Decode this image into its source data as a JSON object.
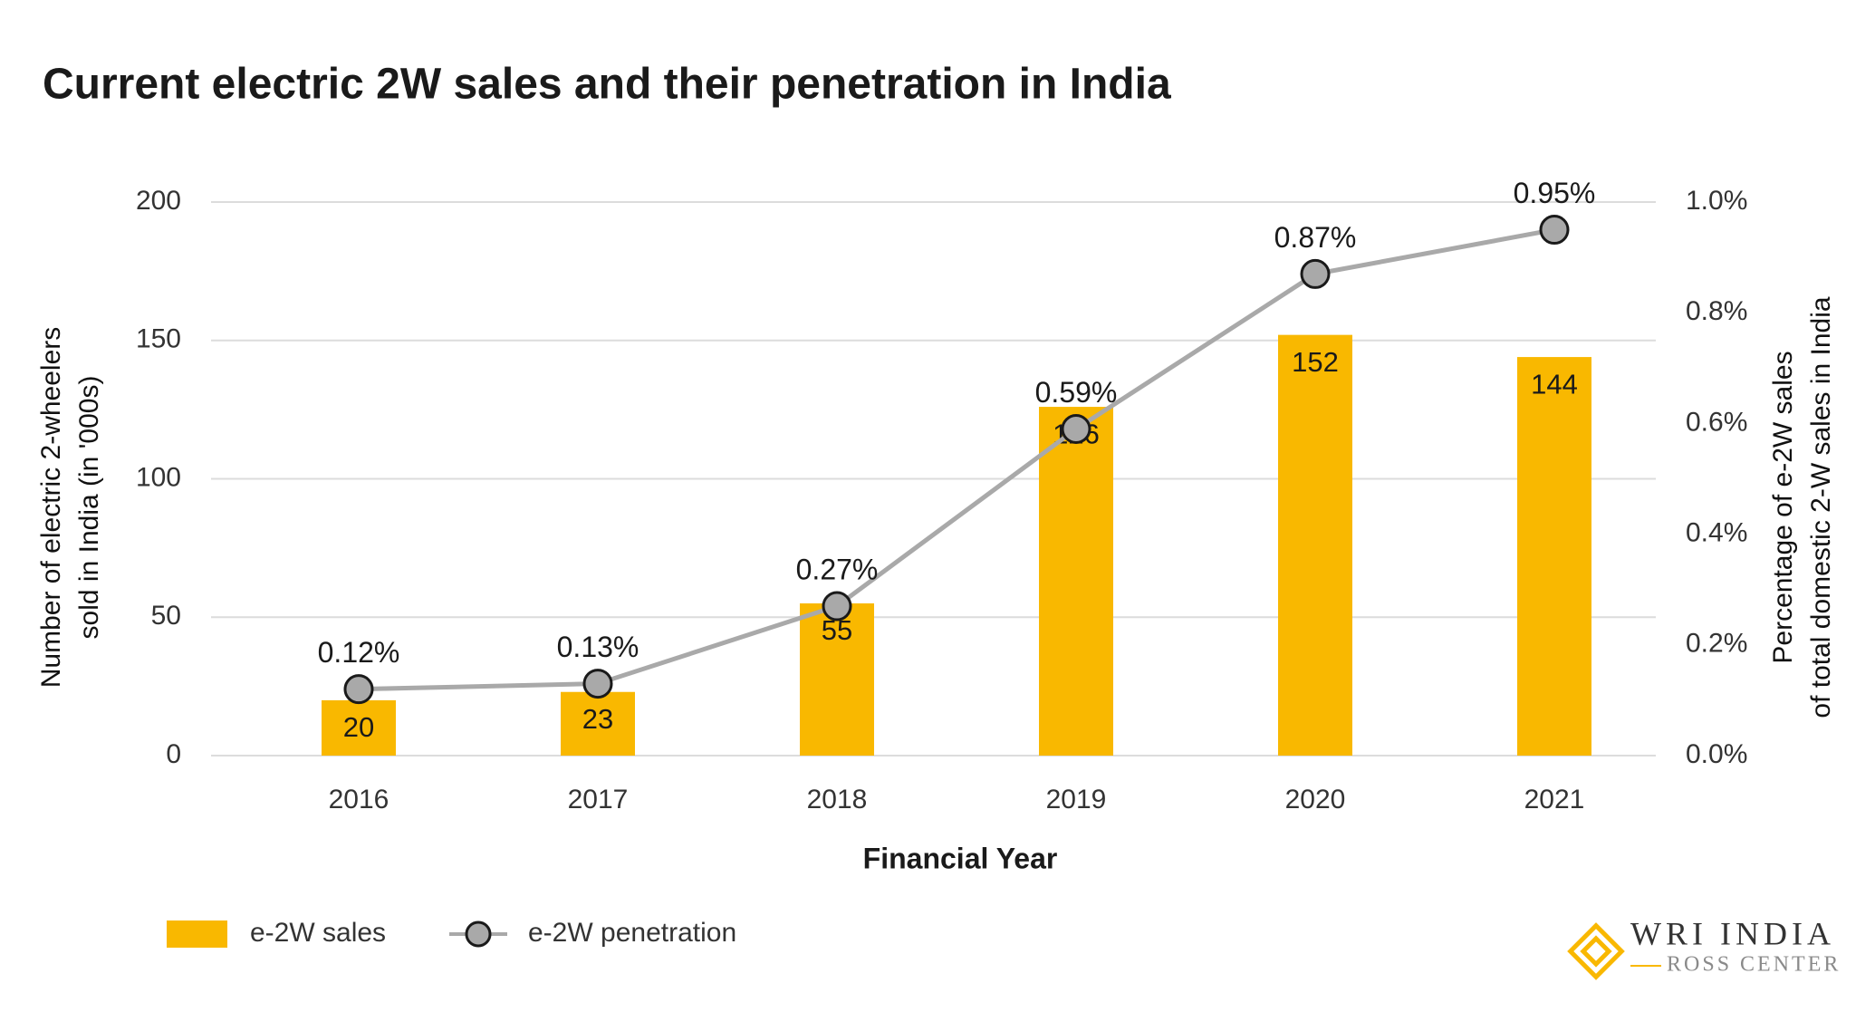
{
  "chart_data": {
    "type": "bar",
    "title": "Current electric 2W sales and their penetration in India",
    "xlabel": "Financial Year",
    "ylabel": [
      "Number of electric 2-wheelers",
      "sold in India (in '000s)"
    ],
    "y2label": [
      "Percentage of e-2W sales",
      "of total domestic 2-W sales in India"
    ],
    "categories": [
      "2016",
      "2017",
      "2018",
      "2019",
      "2020",
      "2021"
    ],
    "series": [
      {
        "name": "e-2W sales",
        "type": "bar",
        "color": "#f9b800",
        "values": [
          20,
          23,
          55,
          126,
          152,
          144
        ]
      },
      {
        "name": "e-2W penetration",
        "type": "line",
        "axis": "y2",
        "color": "#a9a9a9",
        "values": [
          0.12,
          0.13,
          0.27,
          0.59,
          0.87,
          0.95
        ],
        "value_labels": [
          "0.12%",
          "0.13%",
          "0.27%",
          "0.59%",
          "0.87%",
          "0.95%"
        ]
      }
    ],
    "ylim": [
      0,
      200
    ],
    "yticks": [
      0,
      50,
      100,
      150,
      200
    ],
    "y2lim": [
      0,
      1.0
    ],
    "y2ticks": [
      {
        "value": 0,
        "label": "0.0%"
      },
      {
        "value": 0.2,
        "label": "0.2%"
      },
      {
        "value": 0.4,
        "label": "0.4%"
      },
      {
        "value": 0.6,
        "label": "0.6%"
      },
      {
        "value": 0.8,
        "label": "0.8%"
      },
      {
        "value": 1.0,
        "label": "1.0%"
      }
    ],
    "grid": true
  },
  "logo": {
    "name": "WRI INDIA",
    "subtitle": "ROSS CENTER"
  }
}
